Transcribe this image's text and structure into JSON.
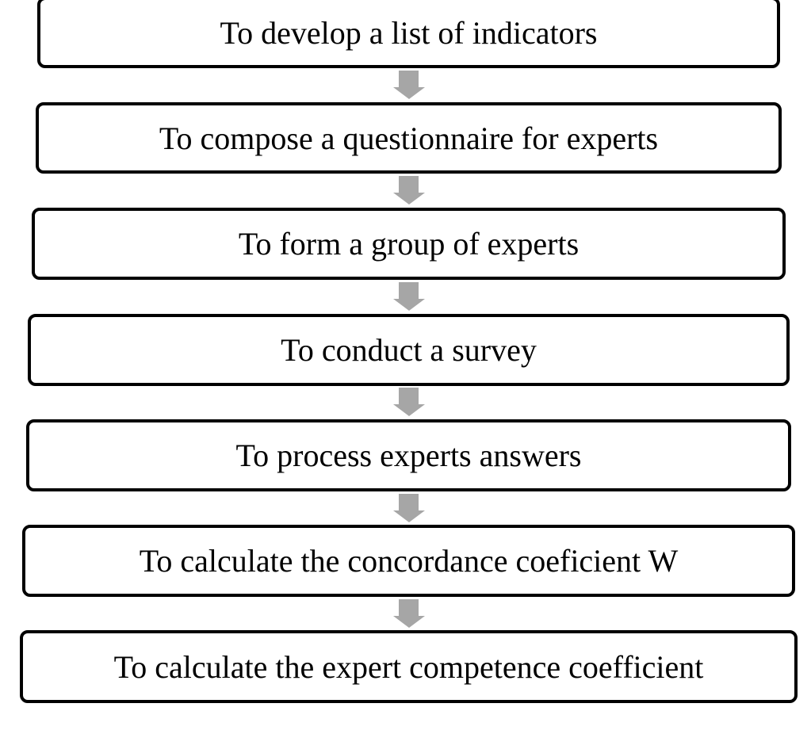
{
  "steps": [
    "To develop a list of indicators",
    "To compose a questionnaire for experts",
    "To form a group of experts",
    "To conduct a survey",
    "To process experts answers",
    "To calculate the concordance coeficient W",
    "To calculate the expert competence coefficient"
  ],
  "colors": {
    "border": "#000000",
    "arrow": "#a6a6a6"
  },
  "connector_icon": "down-arrow-icon"
}
